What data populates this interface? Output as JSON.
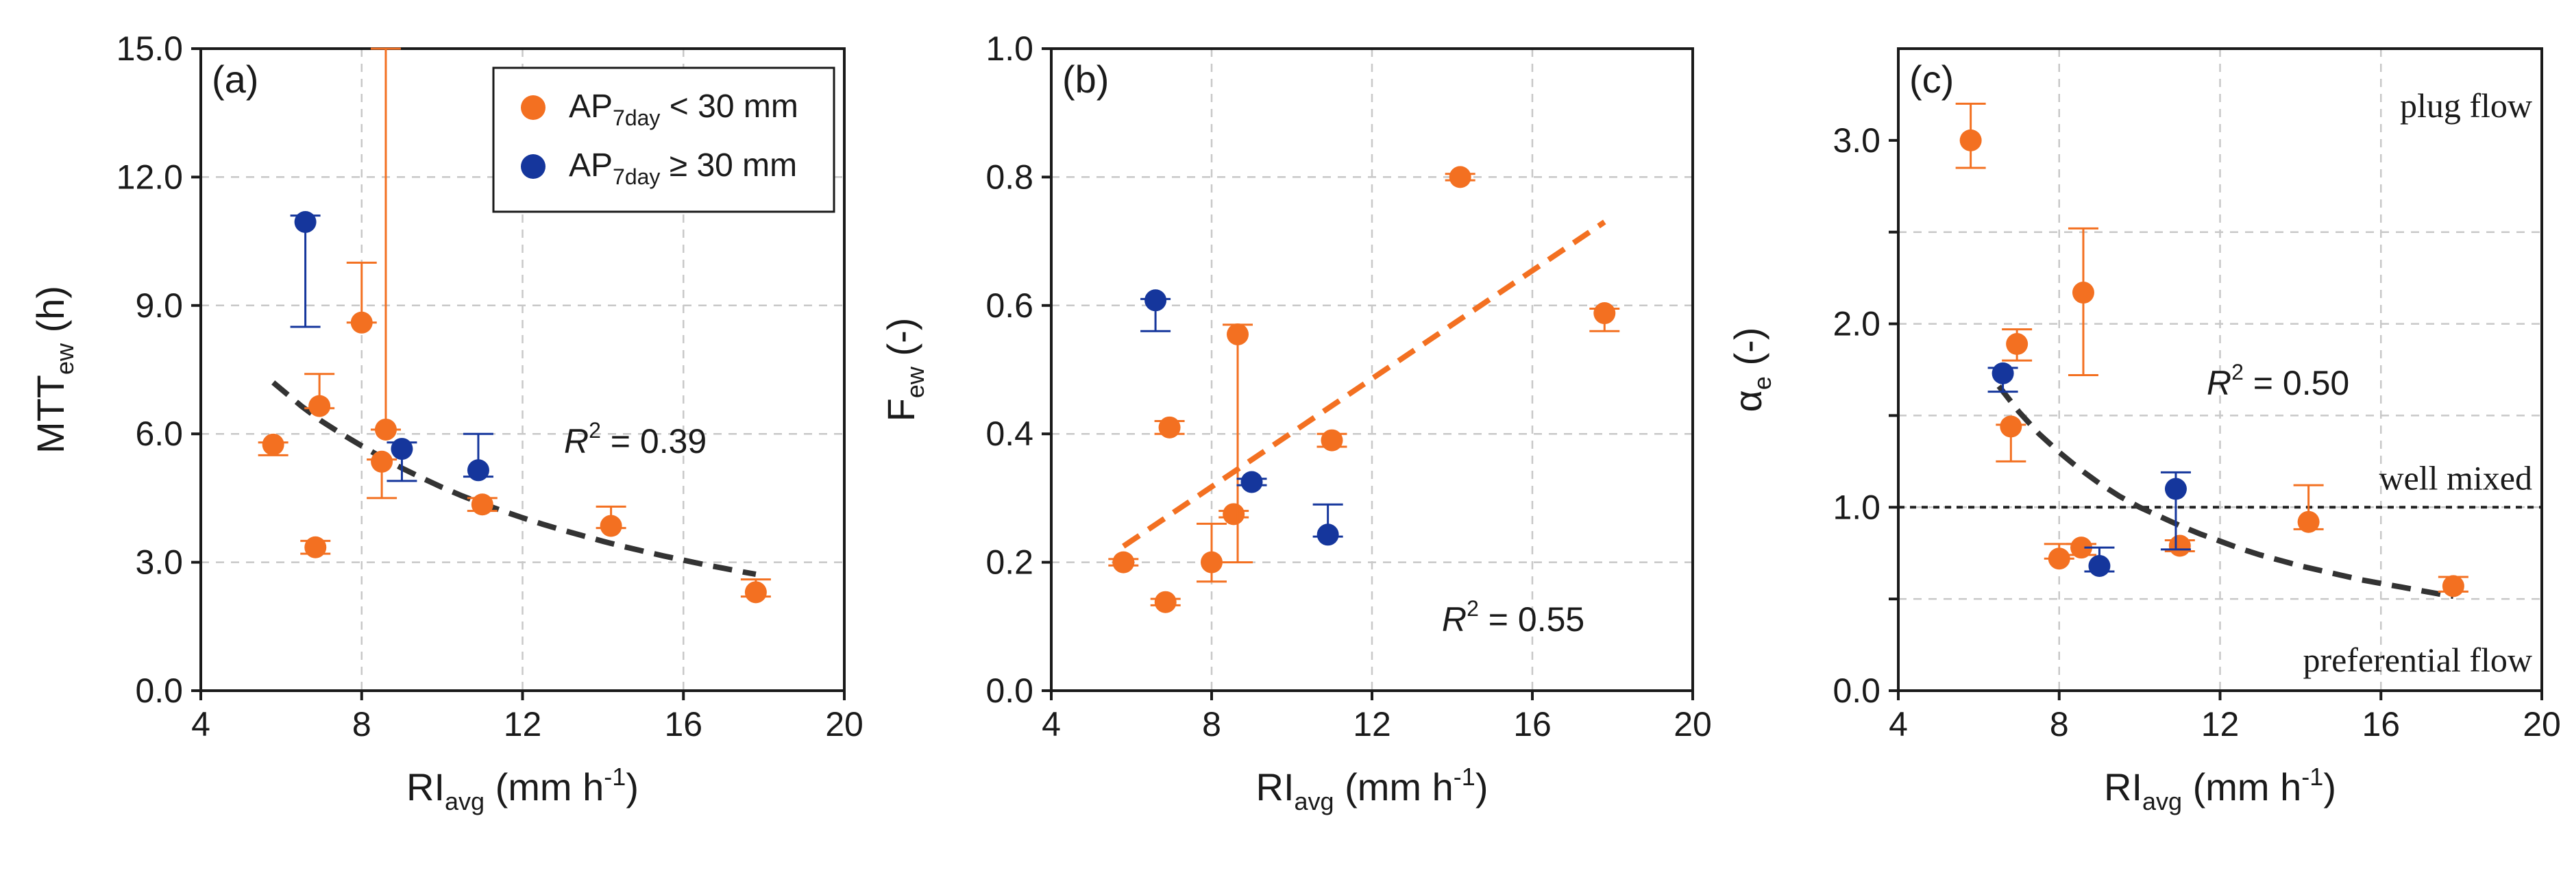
{
  "colors": {
    "low_ap": "#F37021",
    "high_ap": "#15369C",
    "fit": "#333333",
    "fit_b": "#F37021",
    "grid": "#c8c8c8",
    "axis": "#1a1a1a"
  },
  "legend": {
    "low": {
      "base": "AP",
      "sub": "7day",
      "rest": " < 30 mm"
    },
    "high": {
      "base": "AP",
      "sub": "7day",
      "rest": " ≥ 30 mm"
    }
  },
  "chart_data": [
    {
      "type": "scatter",
      "panel": "(a)",
      "xlabel": {
        "base": "RI",
        "sub": "avg",
        "unit": " (mm h",
        "sup": "-1",
        "close": ")"
      },
      "ylabel": {
        "base": "MTT",
        "sub": "ew",
        "unit": " (h)"
      },
      "xlim": [
        4,
        20
      ],
      "ylim": [
        0,
        15
      ],
      "xticks": [
        4,
        8,
        12,
        16,
        20
      ],
      "xtick_labels": [
        "4",
        "8",
        "12",
        "16",
        "20"
      ],
      "yticks": [
        0,
        3,
        6,
        9,
        12,
        15
      ],
      "ytick_labels": [
        "0.0",
        "3.0",
        "6.0",
        "9.0",
        "12.0",
        "15.0"
      ],
      "r2": {
        "label": "R",
        "sup": "2",
        "value": " = 0.39"
      },
      "series": [
        {
          "name": "AP7day < 30 mm",
          "color_key": "low_ap",
          "points": [
            {
              "x": 5.8,
              "y": 5.75,
              "lo": 5.5,
              "hi": 5.8
            },
            {
              "x": 6.85,
              "y": 3.35,
              "lo": 3.2,
              "hi": 3.5
            },
            {
              "x": 6.95,
              "y": 6.65,
              "lo": 6.6,
              "hi": 7.4
            },
            {
              "x": 8.0,
              "y": 8.6,
              "lo": 8.6,
              "hi": 10.0
            },
            {
              "x": 8.5,
              "y": 5.35,
              "lo": 4.5,
              "hi": 5.4
            },
            {
              "x": 8.6,
              "y": 6.1,
              "lo": 6.1,
              "hi": 15.0
            },
            {
              "x": 11.0,
              "y": 4.35,
              "lo": 4.2,
              "hi": 4.5
            },
            {
              "x": 14.2,
              "y": 3.85,
              "lo": 3.8,
              "hi": 4.3
            },
            {
              "x": 17.8,
              "y": 2.3,
              "lo": 2.2,
              "hi": 2.6
            }
          ]
        },
        {
          "name": "AP7day ≥ 30 mm",
          "color_key": "high_ap",
          "points": [
            {
              "x": 6.6,
              "y": 10.95,
              "lo": 8.5,
              "hi": 11.1
            },
            {
              "x": 9.0,
              "y": 5.65,
              "lo": 4.9,
              "hi": 5.8
            },
            {
              "x": 10.9,
              "y": 5.15,
              "lo": 5.0,
              "hi": 6.0
            }
          ]
        }
      ],
      "fit": {
        "color_key": "fit",
        "x": [
          5.8,
          6.5,
          7,
          7.5,
          8,
          8.5,
          9,
          9.5,
          10,
          10.5,
          11,
          11.5,
          12,
          12.5,
          13,
          13.5,
          14,
          14.5,
          15,
          15.5,
          16,
          16.5,
          17,
          17.5,
          17.8
        ],
        "y": [
          7.2,
          6.65,
          6.3,
          6.0,
          5.72,
          5.45,
          5.2,
          4.97,
          4.75,
          4.55,
          4.37,
          4.2,
          4.04,
          3.89,
          3.75,
          3.62,
          3.49,
          3.37,
          3.26,
          3.15,
          3.05,
          2.95,
          2.86,
          2.77,
          2.72
        ]
      }
    },
    {
      "type": "scatter",
      "panel": "(b)",
      "xlabel": {
        "base": "RI",
        "sub": "avg",
        "unit": " (mm h",
        "sup": "-1",
        "close": ")"
      },
      "ylabel": {
        "base": "F",
        "sub": "ew",
        "unit": " (-)"
      },
      "xlim": [
        4,
        20
      ],
      "ylim": [
        0,
        1
      ],
      "xticks": [
        4,
        8,
        12,
        16,
        20
      ],
      "xtick_labels": [
        "4",
        "8",
        "12",
        "16",
        "20"
      ],
      "yticks": [
        0,
        0.2,
        0.4,
        0.6,
        0.8,
        1.0
      ],
      "ytick_labels": [
        "0.0",
        "0.2",
        "0.4",
        "0.6",
        "0.8",
        "1.0"
      ],
      "r2": {
        "label": "R",
        "sup": "2",
        "value": " = 0.55"
      },
      "series": [
        {
          "name": "AP7day < 30 mm",
          "color_key": "low_ap",
          "points": [
            {
              "x": 5.8,
              "y": 0.2,
              "lo": 0.195,
              "hi": 0.205
            },
            {
              "x": 6.85,
              "y": 0.138,
              "lo": 0.133,
              "hi": 0.143
            },
            {
              "x": 6.95,
              "y": 0.41,
              "lo": 0.4,
              "hi": 0.42
            },
            {
              "x": 8.0,
              "y": 0.2,
              "lo": 0.17,
              "hi": 0.26
            },
            {
              "x": 8.55,
              "y": 0.275,
              "lo": 0.27,
              "hi": 0.28
            },
            {
              "x": 8.65,
              "y": 0.555,
              "lo": 0.2,
              "hi": 0.57
            },
            {
              "x": 11.0,
              "y": 0.39,
              "lo": 0.38,
              "hi": 0.4
            },
            {
              "x": 14.2,
              "y": 0.8,
              "lo": 0.795,
              "hi": 0.805
            },
            {
              "x": 17.8,
              "y": 0.588,
              "lo": 0.56,
              "hi": 0.595
            }
          ]
        },
        {
          "name": "AP7day ≥ 30 mm",
          "color_key": "high_ap",
          "points": [
            {
              "x": 6.6,
              "y": 0.608,
              "lo": 0.56,
              "hi": 0.61
            },
            {
              "x": 9.0,
              "y": 0.325,
              "lo": 0.32,
              "hi": 0.33
            },
            {
              "x": 10.9,
              "y": 0.243,
              "lo": 0.24,
              "hi": 0.29
            }
          ]
        }
      ],
      "fit": {
        "color_key": "fit_b",
        "x": [
          5.8,
          17.8
        ],
        "y": [
          0.225,
          0.73
        ]
      }
    },
    {
      "type": "scatter",
      "panel": "(c)",
      "xlabel": {
        "base": "RI",
        "sub": "avg",
        "unit": " (mm h",
        "sup": "-1",
        "close": ")"
      },
      "ylabel": {
        "base": "α",
        "sub": "e",
        "unit": " (-)"
      },
      "xlim": [
        4,
        20
      ],
      "ylim": [
        0,
        3.5
      ],
      "xticks": [
        4,
        8,
        12,
        16,
        20
      ],
      "xtick_labels": [
        "4",
        "8",
        "12",
        "16",
        "20"
      ],
      "yticks": [
        0,
        0.5,
        1.0,
        1.5,
        2.0,
        2.5,
        3.0
      ],
      "ytick_labels": [
        "0.0",
        "",
        "1.0",
        "",
        "2.0",
        "",
        "3.0"
      ],
      "r2": {
        "label": "R",
        "sup": "2",
        "value": " = 0.50"
      },
      "annotations": [
        "plug flow",
        "well mixed",
        "preferential flow"
      ],
      "hline": {
        "y": 1.0
      },
      "series": [
        {
          "name": "AP7day < 30 mm",
          "color_key": "low_ap",
          "points": [
            {
              "x": 5.8,
              "y": 3.0,
              "lo": 2.85,
              "hi": 3.2
            },
            {
              "x": 6.8,
              "y": 1.44,
              "lo": 1.25,
              "hi": 1.45
            },
            {
              "x": 6.95,
              "y": 1.89,
              "lo": 1.8,
              "hi": 1.97
            },
            {
              "x": 8.0,
              "y": 0.72,
              "lo": 0.72,
              "hi": 0.8
            },
            {
              "x": 8.55,
              "y": 0.78,
              "lo": 0.74,
              "hi": 0.8
            },
            {
              "x": 8.6,
              "y": 2.17,
              "lo": 1.72,
              "hi": 2.52
            },
            {
              "x": 11.0,
              "y": 0.79,
              "lo": 0.76,
              "hi": 0.82
            },
            {
              "x": 14.2,
              "y": 0.92,
              "lo": 0.88,
              "hi": 1.12
            },
            {
              "x": 17.8,
              "y": 0.57,
              "lo": 0.54,
              "hi": 0.62
            }
          ]
        },
        {
          "name": "AP7day ≥ 30 mm",
          "color_key": "high_ap",
          "points": [
            {
              "x": 6.6,
              "y": 1.73,
              "lo": 1.63,
              "hi": 1.76
            },
            {
              "x": 9.0,
              "y": 0.68,
              "lo": 0.65,
              "hi": 0.78
            },
            {
              "x": 10.9,
              "y": 1.1,
              "lo": 0.77,
              "hi": 1.19
            }
          ]
        }
      ],
      "fit": {
        "color_key": "fit",
        "x": [
          6.5,
          7,
          7.5,
          8,
          8.5,
          9,
          9.5,
          10,
          10.5,
          11,
          11.5,
          12,
          12.5,
          13,
          13.5,
          14,
          14.5,
          15,
          15.5,
          16,
          16.5,
          17,
          17.5,
          17.8
        ],
        "y": [
          1.66,
          1.52,
          1.4,
          1.3,
          1.21,
          1.13,
          1.06,
          1.0,
          0.95,
          0.9,
          0.855,
          0.815,
          0.775,
          0.74,
          0.71,
          0.68,
          0.655,
          0.63,
          0.605,
          0.585,
          0.565,
          0.545,
          0.525,
          0.515
        ]
      }
    }
  ]
}
